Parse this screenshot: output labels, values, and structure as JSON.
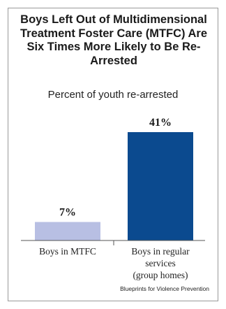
{
  "chart_data": {
    "type": "bar",
    "title": "Boys Left Out of Multidimensional Treatment Foster Care (MTFC) Are Six Times More Likely to Be Re-Arrested",
    "subtitle": "Percent of youth re-arrested",
    "categories": [
      "Boys in MTFC",
      "Boys in regular services (group homes)"
    ],
    "category_lines": [
      [
        "Boys in MTFC"
      ],
      [
        "Boys in regular",
        "services",
        "(group homes)"
      ]
    ],
    "values": [
      7,
      41
    ],
    "value_labels": [
      "7%",
      "41%"
    ],
    "bar_colors": [
      "#b8bfe3",
      "#0b4a8f"
    ],
    "ylim": [
      0,
      41
    ],
    "grid": false,
    "legend": "none",
    "xlabel": "",
    "ylabel": ""
  },
  "source": "Blueprints for Violence Prevention"
}
